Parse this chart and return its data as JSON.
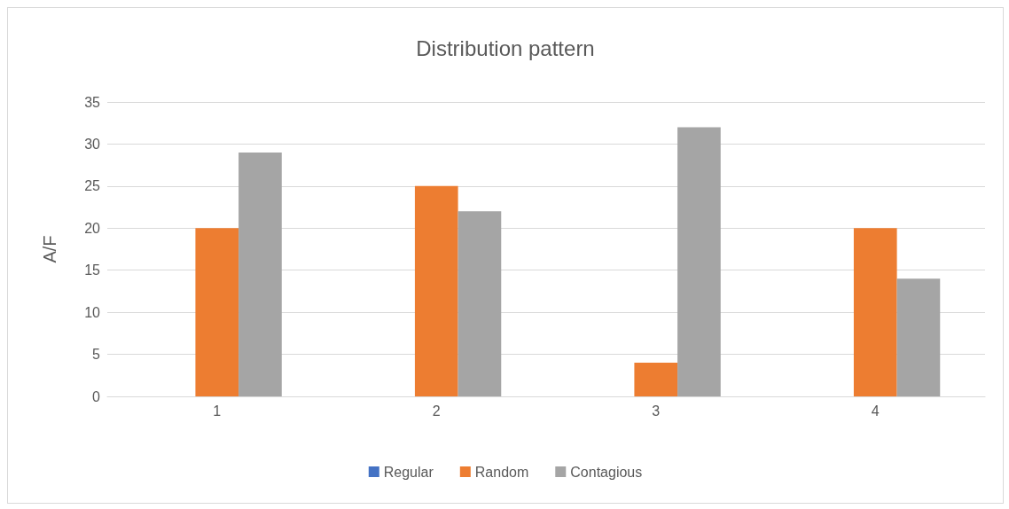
{
  "chart_data": {
    "type": "bar",
    "title": "Distribution pattern",
    "ylabel": "A/F",
    "categories": [
      "1",
      "2",
      "3",
      "4"
    ],
    "series": [
      {
        "name": "Regular",
        "color": "#4472c4",
        "values": [
          0,
          0,
          0,
          0
        ]
      },
      {
        "name": "Random",
        "color": "#ed7d31",
        "values": [
          20,
          25,
          4,
          20
        ]
      },
      {
        "name": "Contagious",
        "color": "#a5a5a5",
        "values": [
          29,
          22,
          32,
          14
        ]
      }
    ],
    "ylim": [
      0,
      35
    ],
    "yticks": [
      0,
      5,
      10,
      15,
      20,
      25,
      30,
      35
    ],
    "grid": "y",
    "legend": "bottom"
  }
}
